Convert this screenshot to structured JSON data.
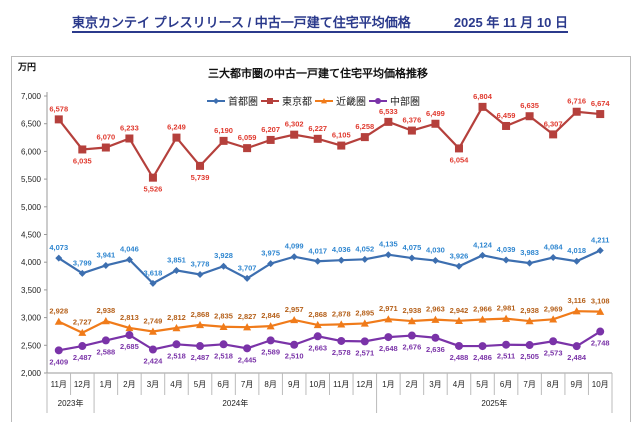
{
  "header": {
    "title": "東京カンテイ プレスリリース / 中古一戸建て住宅平均価格",
    "date": "2025 年 11 月 10 日"
  },
  "chart_data": {
    "type": "line",
    "title": "三大都市圏の中古一戸建て住宅平均価格推移",
    "ylabel": "万円",
    "ylim": [
      2000,
      7000
    ],
    "yticks": [
      "2,000",
      "2,500",
      "3,000",
      "3,500",
      "4,000",
      "4,500",
      "5,000",
      "5,500",
      "6,000",
      "6,500",
      "7,000"
    ],
    "legend_position": "top",
    "grid": false,
    "categories": [
      "11月",
      "12月",
      "1月",
      "2月",
      "3月",
      "4月",
      "5月",
      "6月",
      "7月",
      "8月",
      "9月",
      "10月",
      "11月",
      "12月",
      "1月",
      "2月",
      "3月",
      "4月",
      "5月",
      "6月",
      "7月",
      "8月",
      "9月",
      "10月"
    ],
    "years": [
      {
        "label": "2023年",
        "span": 2
      },
      {
        "label": "2024年",
        "span": 12
      },
      {
        "label": "2025年",
        "span": 10
      }
    ],
    "series": [
      {
        "name": "首都圏",
        "color": "#3d6fb0",
        "label_color": "#2e86d0",
        "marker": "diamond",
        "values": [
          4073,
          3799,
          3941,
          4046,
          3618,
          3851,
          3778,
          3928,
          3707,
          3975,
          4099,
          4017,
          4036,
          4052,
          4135,
          4075,
          4030,
          3926,
          4124,
          4039,
          3983,
          4084,
          4018,
          4211
        ]
      },
      {
        "name": "東京都",
        "color": "#b5403c",
        "label_color": "#e03a2f",
        "marker": "square",
        "values": [
          6578,
          6035,
          6070,
          6233,
          5526,
          6249,
          5739,
          6190,
          6059,
          6207,
          6302,
          6227,
          6105,
          6258,
          6533,
          6376,
          6499,
          6054,
          6804,
          6459,
          6635,
          6307,
          6716,
          6674
        ]
      },
      {
        "name": "近畿圏",
        "color": "#f07b1a",
        "label_color": "#b5601a",
        "marker": "triangle",
        "values": [
          2928,
          2727,
          2938,
          2813,
          2749,
          2812,
          2868,
          2835,
          2827,
          2846,
          2957,
          2868,
          2878,
          2895,
          2971,
          2938,
          2963,
          2942,
          2966,
          2981,
          2938,
          2969,
          3116,
          3108
        ]
      },
      {
        "name": "中部圏",
        "color": "#7a33a8",
        "label_color": "#7a33a8",
        "marker": "circle",
        "values": [
          2409,
          2487,
          2588,
          2685,
          2424,
          2518,
          2487,
          2518,
          2445,
          2589,
          2510,
          2663,
          2578,
          2571,
          2648,
          2676,
          2636,
          2488,
          2486,
          2511,
          2505,
          2573,
          2484,
          2748
        ]
      }
    ]
  }
}
